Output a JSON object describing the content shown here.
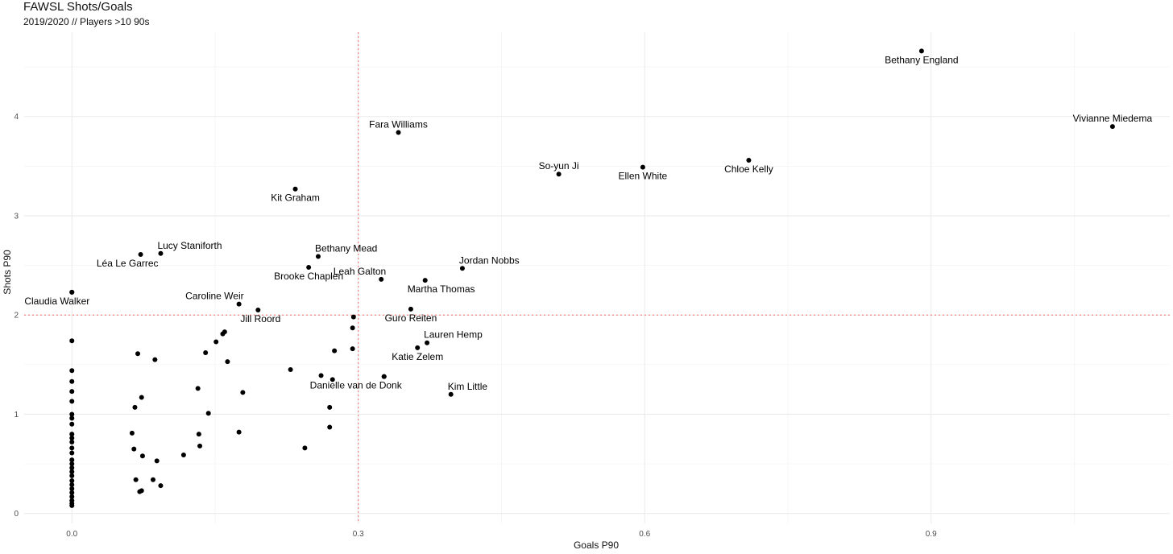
{
  "chart_data": {
    "type": "scatter",
    "title": "FAWSL Shots/Goals",
    "subtitle": "2019/2020 // Players >10 90s",
    "xlabel": "Goals P90",
    "ylabel": "Shots P90",
    "xlim": [
      -0.05,
      1.15
    ],
    "ylim": [
      -0.1,
      4.85
    ],
    "x_ticks": [
      0.0,
      0.3,
      0.6,
      0.9
    ],
    "x_tick_labels": [
      "0.0",
      "0.3",
      "0.6",
      "0.9"
    ],
    "y_ticks": [
      0,
      1,
      2,
      3,
      4
    ],
    "y_tick_labels": [
      "0",
      "1",
      "2",
      "3",
      "4"
    ],
    "reference_lines": {
      "x": 0.3,
      "y": 2.0,
      "color": "#f26b6b",
      "style": "dotted"
    },
    "grid": true,
    "labeled_points": [
      {
        "label": "Bethany England",
        "x": 0.89,
        "y": 4.66,
        "pos": "below"
      },
      {
        "label": "Vivianne Miedema",
        "x": 1.09,
        "y": 3.9,
        "pos": "above"
      },
      {
        "label": "Fara Williams",
        "x": 0.342,
        "y": 3.84,
        "pos": "above"
      },
      {
        "label": "Chloe Kelly",
        "x": 0.709,
        "y": 3.56,
        "pos": "below"
      },
      {
        "label": "Ellen White",
        "x": 0.598,
        "y": 3.49,
        "pos": "below"
      },
      {
        "label": "So-yun Ji",
        "x": 0.51,
        "y": 3.42,
        "pos": "above"
      },
      {
        "label": "Kit Graham",
        "x": 0.234,
        "y": 3.27,
        "pos": "below"
      },
      {
        "label": "Lucy Staniforth",
        "x": 0.093,
        "y": 2.62,
        "pos": "above-right"
      },
      {
        "label": "Léa Le Garrec",
        "x": 0.072,
        "y": 2.61,
        "pos": "below-left"
      },
      {
        "label": "Bethany Mead",
        "x": 0.258,
        "y": 2.59,
        "pos": "above-right"
      },
      {
        "label": "Brooke Chaplen",
        "x": 0.248,
        "y": 2.48,
        "pos": "below"
      },
      {
        "label": "Jordan Nobbs",
        "x": 0.409,
        "y": 2.47,
        "pos": "above-right"
      },
      {
        "label": "Leah Galton",
        "x": 0.324,
        "y": 2.36,
        "pos": "above-left"
      },
      {
        "label": "Martha Thomas",
        "x": 0.37,
        "y": 2.35,
        "pos": "below-right"
      },
      {
        "label": "Claudia Walker",
        "x": 0.0,
        "y": 2.23,
        "pos": "below-left"
      },
      {
        "label": "Caroline Weir",
        "x": 0.175,
        "y": 2.11,
        "pos": "above-left"
      },
      {
        "label": "Jill Roord",
        "x": 0.195,
        "y": 2.05,
        "pos": "below-right"
      },
      {
        "label": "Guro Reiten",
        "x": 0.355,
        "y": 2.06,
        "pos": "below"
      },
      {
        "label": "Lauren Hemp",
        "x": 0.372,
        "y": 1.72,
        "pos": "above-right"
      },
      {
        "label": "Katie Zelem",
        "x": 0.362,
        "y": 1.67,
        "pos": "below"
      },
      {
        "label": "Danielle van de Donk",
        "x": 0.327,
        "y": 1.38,
        "pos": "below-left"
      },
      {
        "label": "Kim Little",
        "x": 0.397,
        "y": 1.2,
        "pos": "above-right"
      }
    ],
    "points": [
      [
        0,
        2.23
      ],
      [
        0,
        1.74
      ],
      [
        0,
        1.44
      ],
      [
        0,
        1.33
      ],
      [
        0,
        1.23
      ],
      [
        0,
        1.13
      ],
      [
        0,
        1.0
      ],
      [
        0,
        0.96
      ],
      [
        0,
        0.9
      ],
      [
        0,
        0.8
      ],
      [
        0,
        0.76
      ],
      [
        0,
        0.72
      ],
      [
        0,
        0.66
      ],
      [
        0,
        0.61
      ],
      [
        0,
        0.54
      ],
      [
        0,
        0.5
      ],
      [
        0,
        0.46
      ],
      [
        0,
        0.42
      ],
      [
        0,
        0.38
      ],
      [
        0,
        0.33
      ],
      [
        0,
        0.29
      ],
      [
        0,
        0.25
      ],
      [
        0,
        0.21
      ],
      [
        0,
        0.17
      ],
      [
        0,
        0.13
      ],
      [
        0,
        0.1
      ],
      [
        0,
        0.08
      ],
      [
        0.063,
        0.81
      ],
      [
        0.065,
        0.65
      ],
      [
        0.066,
        1.07
      ],
      [
        0.067,
        0.34
      ],
      [
        0.069,
        1.61
      ],
      [
        0.071,
        0.22
      ],
      [
        0.073,
        0.23
      ],
      [
        0.073,
        1.17
      ],
      [
        0.074,
        0.58
      ],
      [
        0.085,
        0.34
      ],
      [
        0.087,
        1.55
      ],
      [
        0.089,
        0.53
      ],
      [
        0.093,
        0.28
      ],
      [
        0.117,
        0.59
      ],
      [
        0.132,
        1.26
      ],
      [
        0.133,
        0.8
      ],
      [
        0.134,
        0.68
      ],
      [
        0.14,
        1.62
      ],
      [
        0.143,
        1.01
      ],
      [
        0.151,
        1.73
      ],
      [
        0.158,
        1.81
      ],
      [
        0.16,
        1.83
      ],
      [
        0.163,
        1.53
      ],
      [
        0.175,
        0.82
      ],
      [
        0.179,
        1.22
      ],
      [
        0.229,
        1.45
      ],
      [
        0.244,
        0.66
      ],
      [
        0.261,
        1.39
      ],
      [
        0.27,
        1.07
      ],
      [
        0.27,
        0.87
      ],
      [
        0.273,
        1.35
      ],
      [
        0.275,
        1.64
      ],
      [
        0.294,
        1.87
      ],
      [
        0.294,
        1.66
      ],
      [
        0.295,
        1.98
      ],
      [
        0.327,
        1.38
      ]
    ]
  }
}
